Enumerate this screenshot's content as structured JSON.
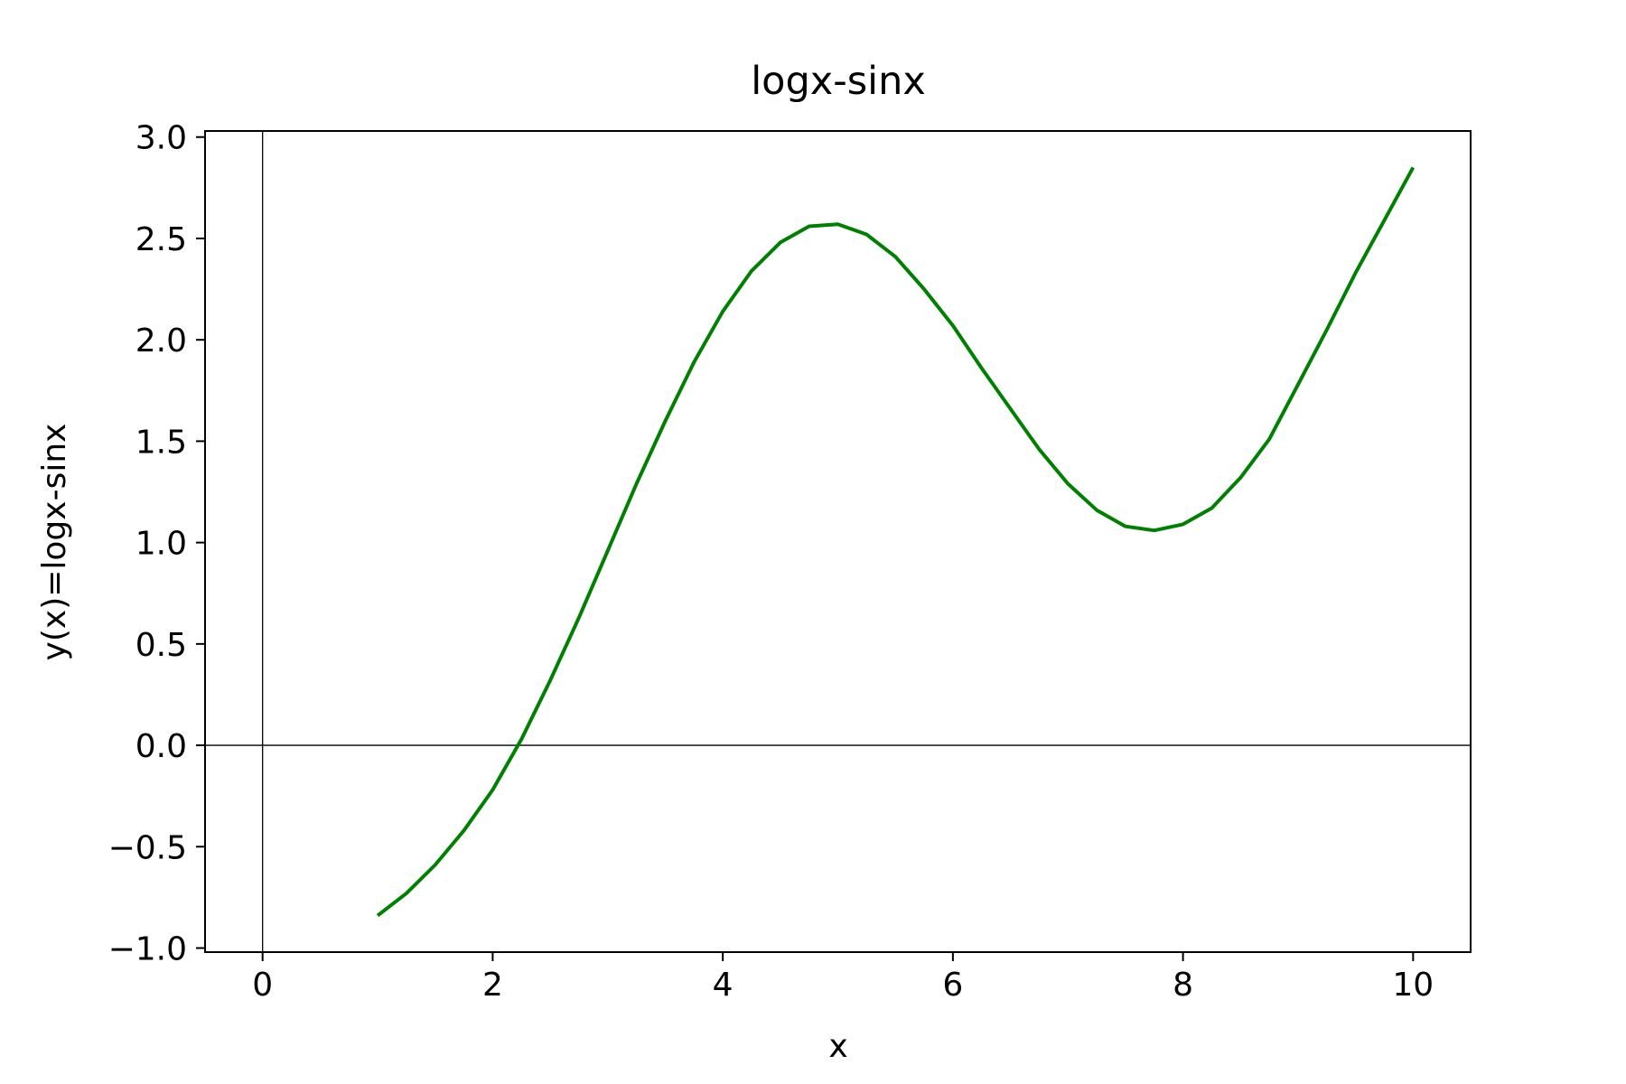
{
  "chart_data": {
    "type": "line",
    "title": "logx-sinx",
    "xlabel": "x",
    "ylabel": "y(x)=logx-sinx",
    "xlim": [
      -0.5,
      10.5
    ],
    "ylim": [
      -1.02,
      3.03
    ],
    "xticks": [
      0,
      2,
      4,
      6,
      8,
      10
    ],
    "xtick_labels": [
      "0",
      "2",
      "4",
      "6",
      "8",
      "10"
    ],
    "yticks": [
      -1.0,
      -0.5,
      0.0,
      0.5,
      1.0,
      1.5,
      2.0,
      2.5,
      3.0
    ],
    "ytick_labels": [
      "−1.0",
      "−0.5",
      "0.0",
      "0.5",
      "1.0",
      "1.5",
      "2.0",
      "2.5",
      "3.0"
    ],
    "grid": false,
    "reference_lines": {
      "x": 0,
      "y": 0
    },
    "series": [
      {
        "color": "#008000",
        "x": [
          1.0,
          1.25,
          1.5,
          1.75,
          2.0,
          2.25,
          2.5,
          2.75,
          3.0,
          3.25,
          3.5,
          3.75,
          4.0,
          4.25,
          4.5,
          4.75,
          5.0,
          5.25,
          5.5,
          5.75,
          6.0,
          6.25,
          6.5,
          6.75,
          7.0,
          7.25,
          7.5,
          7.75,
          8.0,
          8.25,
          8.5,
          8.75,
          9.0,
          9.25,
          9.5,
          9.75,
          10.0
        ],
        "y": [
          -0.84,
          -0.73,
          -0.59,
          -0.42,
          -0.22,
          0.03,
          0.32,
          0.63,
          0.96,
          1.29,
          1.6,
          1.89,
          2.14,
          2.34,
          2.48,
          2.56,
          2.57,
          2.52,
          2.41,
          2.25,
          2.07,
          1.86,
          1.66,
          1.46,
          1.29,
          1.16,
          1.08,
          1.06,
          1.09,
          1.17,
          1.32,
          1.51,
          1.78,
          2.05,
          2.33,
          2.59,
          2.85
        ]
      }
    ]
  }
}
